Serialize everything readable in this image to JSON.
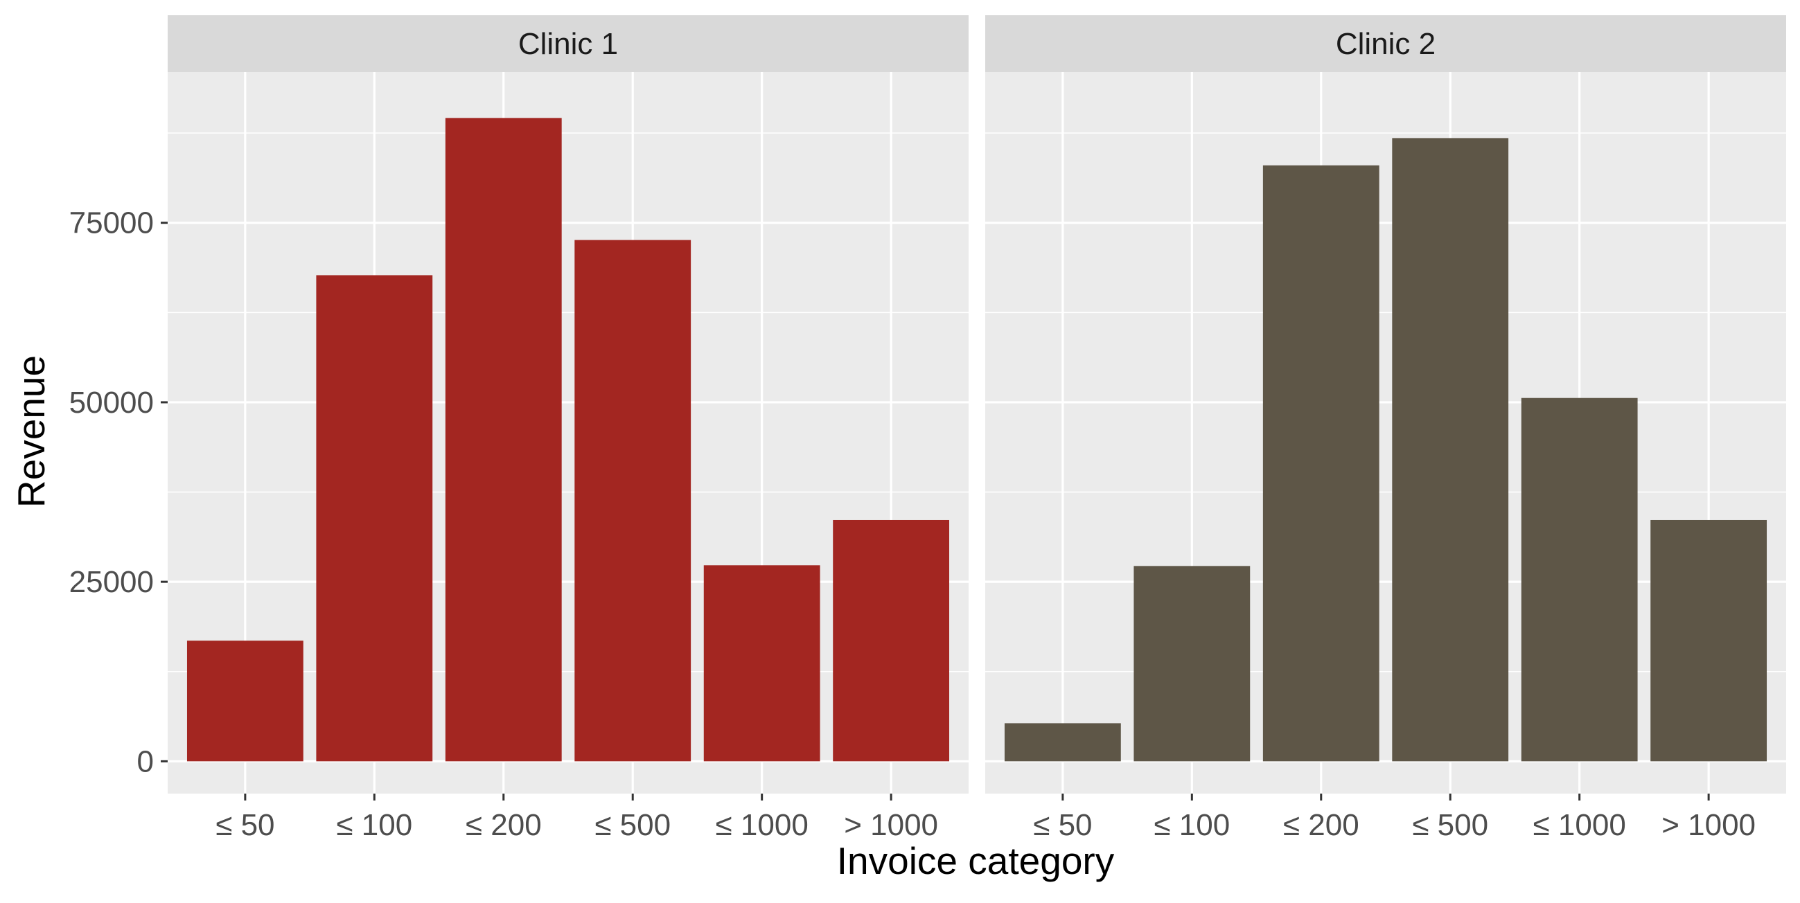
{
  "chart_data": {
    "type": "bar",
    "xlabel": "Invoice category",
    "ylabel": "Revenue",
    "ylim": [
      -4500,
      96000
    ],
    "yticks": [
      0,
      25000,
      50000,
      75000
    ],
    "ytick_labels": [
      "0",
      "25000",
      "50000",
      "75000"
    ],
    "grid": true,
    "categories": [
      "≤ 50",
      "≤ 100",
      "≤ 200",
      "≤ 500",
      "≤ 1000",
      "> 1000"
    ],
    "panels": [
      {
        "title": "Clinic 1",
        "color": "#A32621",
        "values": [
          16800,
          67700,
          89600,
          72600,
          27300,
          33600
        ]
      },
      {
        "title": "Clinic 2",
        "color": "#5E5647",
        "values": [
          5300,
          27200,
          83000,
          86800,
          50600,
          33600
        ]
      }
    ],
    "colors": {
      "panel_background": "#EBEBEB",
      "strip_background": "#D9D9D9",
      "grid": "#FFFFFF",
      "tick_text": "#4D4D4D",
      "title_text": "#1A1A1A"
    }
  }
}
